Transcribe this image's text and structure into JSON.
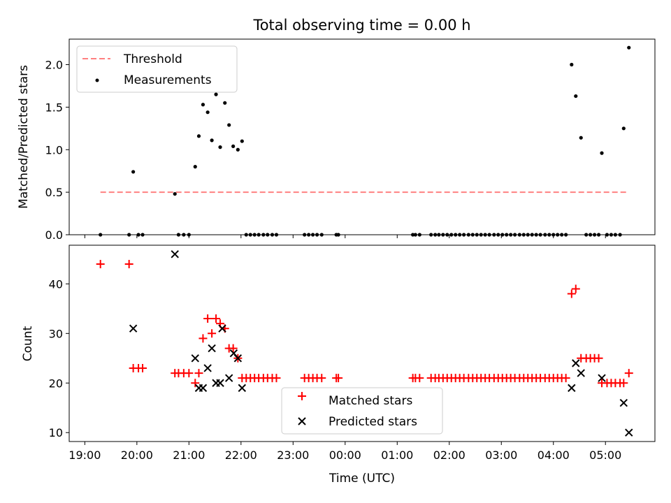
{
  "chart_data": [
    {
      "type": "scatter",
      "title": "Total observing time = 0.00 h",
      "xlabel": "",
      "ylabel": "Matched/Predicted stars",
      "xlim": [
        18.7,
        29.95
      ],
      "ylim": [
        0,
        2.3
      ],
      "yticks": [
        0.0,
        0.5,
        1.0,
        1.5,
        2.0
      ],
      "ytick_labels": [
        "0.0",
        "0.5",
        "1.0",
        "1.5",
        "2.0"
      ],
      "xtick_hours": [
        19,
        20,
        21,
        22,
        23,
        24,
        25,
        26,
        27,
        28,
        29
      ],
      "grid": false,
      "legend": {
        "position": "upper-left",
        "entries": [
          "Threshold",
          "Measurements"
        ]
      },
      "colors": {
        "threshold": "#ff8080",
        "measurements": "#000000"
      },
      "threshold": {
        "name": "Threshold",
        "y": 0.5,
        "x_range": [
          19.3,
          29.4
        ]
      },
      "series": [
        {
          "name": "Measurements",
          "x": [
            19.3,
            19.85,
            19.93,
            20.03,
            20.11,
            20.73,
            20.8,
            20.9,
            21.0,
            21.12,
            21.19,
            21.27,
            21.36,
            21.44,
            21.52,
            21.6,
            21.69,
            21.77,
            21.85,
            21.94,
            22.02,
            22.1,
            22.18,
            22.26,
            22.34,
            22.43,
            22.51,
            22.6,
            22.68,
            23.22,
            23.3,
            23.38,
            23.46,
            23.55,
            23.83,
            23.87,
            25.3,
            25.35,
            25.43,
            25.65,
            25.73,
            25.8,
            25.88,
            25.96,
            26.04,
            26.12,
            26.2,
            26.28,
            26.37,
            26.45,
            26.53,
            26.61,
            26.69,
            26.77,
            26.86,
            26.94,
            27.02,
            27.1,
            27.18,
            27.26,
            27.35,
            27.43,
            27.51,
            27.59,
            27.67,
            27.75,
            27.84,
            27.92,
            28.0,
            28.08,
            28.16,
            28.24,
            28.35,
            28.43,
            28.53,
            28.63,
            28.71,
            28.79,
            28.87,
            28.93,
            29.03,
            29.11,
            29.19,
            29.28,
            29.35,
            29.45
          ],
          "y": [
            0,
            0,
            0.74,
            0,
            0,
            0.48,
            0,
            0,
            0,
            0.8,
            1.16,
            1.53,
            1.44,
            1.11,
            1.65,
            1.03,
            1.55,
            1.29,
            1.04,
            1.0,
            1.1,
            0,
            0,
            0,
            0,
            0,
            0,
            0,
            0,
            0,
            0,
            0,
            0,
            0,
            0,
            0,
            0,
            0,
            0,
            0,
            0,
            0,
            0,
            0,
            0,
            0,
            0,
            0,
            0,
            0,
            0,
            0,
            0,
            0,
            0,
            0,
            0,
            0,
            0,
            0,
            0,
            0,
            0,
            0,
            0,
            0,
            0,
            0,
            0,
            0,
            0,
            0,
            2.0,
            1.63,
            1.14,
            0,
            0,
            0,
            0,
            0.96,
            0,
            0,
            0,
            0,
            1.25,
            2.2
          ]
        }
      ]
    },
    {
      "type": "scatter",
      "title": "",
      "xlabel": "Time (UTC)",
      "ylabel": "Count",
      "xlim": [
        18.7,
        29.95
      ],
      "ylim": [
        8.2,
        47.8
      ],
      "yticks": [
        10,
        20,
        30,
        40
      ],
      "ytick_labels": [
        "10",
        "20",
        "30",
        "40"
      ],
      "xtick_hours": [
        19,
        20,
        21,
        22,
        23,
        24,
        25,
        26,
        27,
        28,
        29
      ],
      "xtick_labels": [
        "19:00",
        "20:00",
        "21:00",
        "22:00",
        "23:00",
        "00:00",
        "01:00",
        "02:00",
        "03:00",
        "04:00",
        "05:00"
      ],
      "grid": false,
      "legend": {
        "position": "lower-center",
        "entries": [
          "Matched stars",
          "Predicted stars"
        ]
      },
      "colors": {
        "matched": "#ff0000",
        "predicted": "#000000"
      },
      "series": [
        {
          "name": "Matched stars",
          "x": [
            19.3,
            19.85,
            19.93,
            20.03,
            20.11,
            20.73,
            20.8,
            20.9,
            21.0,
            21.12,
            21.19,
            21.27,
            21.36,
            21.44,
            21.52,
            21.6,
            21.69,
            21.77,
            21.85,
            21.94,
            22.02,
            22.1,
            22.18,
            22.26,
            22.34,
            22.43,
            22.51,
            22.6,
            22.68,
            23.22,
            23.3,
            23.38,
            23.46,
            23.55,
            23.83,
            23.87,
            25.3,
            25.35,
            25.43,
            25.65,
            25.73,
            25.8,
            25.88,
            25.96,
            26.04,
            26.12,
            26.2,
            26.28,
            26.37,
            26.45,
            26.53,
            26.61,
            26.69,
            26.77,
            26.86,
            26.94,
            27.02,
            27.1,
            27.18,
            27.26,
            27.35,
            27.43,
            27.51,
            27.59,
            27.67,
            27.75,
            27.84,
            27.92,
            28.0,
            28.08,
            28.16,
            28.24,
            28.35,
            28.43,
            28.53,
            28.63,
            28.71,
            28.79,
            28.87,
            28.93,
            29.03,
            29.11,
            29.19,
            29.28,
            29.35,
            29.45
          ],
          "y": [
            44,
            44,
            23,
            23,
            23,
            22,
            22,
            22,
            22,
            20,
            22,
            29,
            33,
            30,
            33,
            32,
            31,
            27,
            27,
            25,
            21,
            21,
            21,
            21,
            21,
            21,
            21,
            21,
            21,
            21,
            21,
            21,
            21,
            21,
            21,
            21,
            21,
            21,
            21,
            21,
            21,
            21,
            21,
            21,
            21,
            21,
            21,
            21,
            21,
            21,
            21,
            21,
            21,
            21,
            21,
            21,
            21,
            21,
            21,
            21,
            21,
            21,
            21,
            21,
            21,
            21,
            21,
            21,
            21,
            21,
            21,
            21,
            38,
            39,
            25,
            25,
            25,
            25,
            25,
            20,
            20,
            20,
            20,
            20,
            20,
            22
          ]
        },
        {
          "name": "Predicted stars",
          "x": [
            19.93,
            20.73,
            21.12,
            21.19,
            21.27,
            21.36,
            21.44,
            21.52,
            21.6,
            21.64,
            21.77,
            21.86,
            21.94,
            22.02,
            28.35,
            28.43,
            28.53,
            28.93,
            29.35,
            29.45
          ],
          "y": [
            31,
            46,
            25,
            19,
            19,
            23,
            27,
            20,
            20,
            31,
            21,
            26,
            25,
            19,
            19,
            24,
            22,
            21,
            16,
            10
          ]
        }
      ]
    }
  ]
}
